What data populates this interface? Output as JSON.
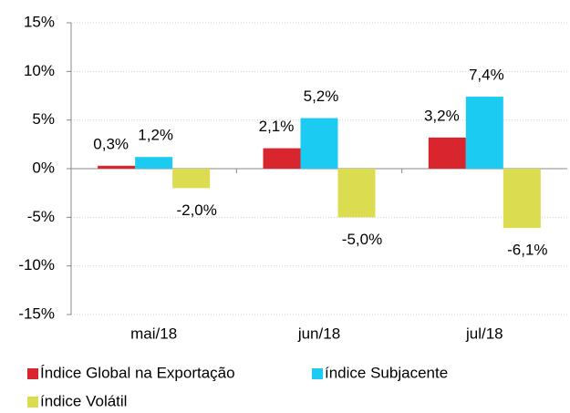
{
  "chart_data": {
    "type": "bar",
    "categories": [
      "mai/18",
      "jun/18",
      "jul/18"
    ],
    "series": [
      {
        "name": "Índice Global na Exportação",
        "color": "#d9262e",
        "values": [
          0.3,
          2.1,
          3.2
        ],
        "value_labels": [
          "0,3%",
          "2,1%",
          "3,2%"
        ]
      },
      {
        "name": "índice Subjacente",
        "color": "#1ccbf2",
        "values": [
          1.2,
          5.2,
          7.4
        ],
        "value_labels": [
          "1,2%",
          "5,2%",
          "7,4%"
        ]
      },
      {
        "name": "índice Volátil",
        "color": "#dcdc50",
        "values": [
          -2.0,
          -5.0,
          -6.1
        ],
        "value_labels": [
          "-2,0%",
          "-5,0%",
          "-6,1%"
        ]
      }
    ],
    "ylim": [
      -15,
      15
    ],
    "yticks": [
      {
        "value": -15,
        "label": "-15%"
      },
      {
        "value": -10,
        "label": "-10%"
      },
      {
        "value": -5,
        "label": "-5%"
      },
      {
        "value": 0,
        "label": "0%"
      },
      {
        "value": 5,
        "label": "5%"
      },
      {
        "value": 10,
        "label": "10%"
      },
      {
        "value": 15,
        "label": "15%"
      }
    ],
    "grid": true
  }
}
